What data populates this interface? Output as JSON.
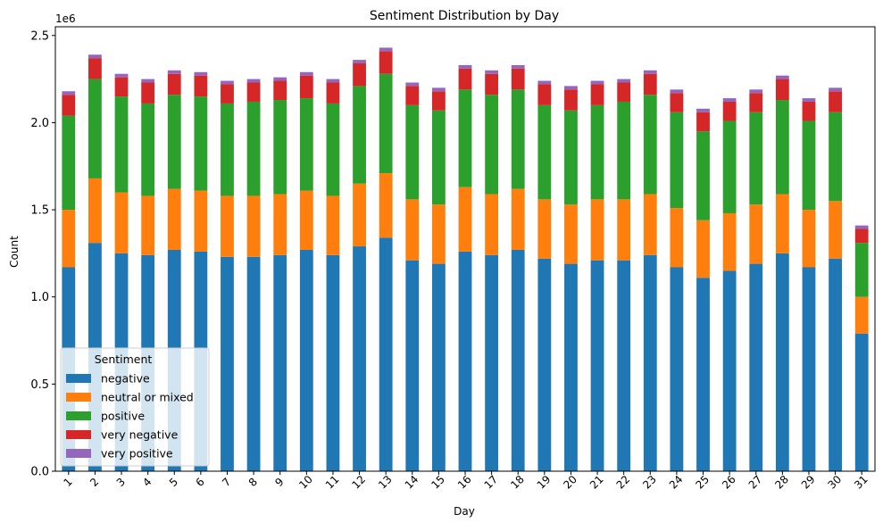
{
  "chart_data": {
    "type": "bar",
    "stacked": true,
    "title": "Sentiment Distribution by Day",
    "xlabel": "Day",
    "ylabel": "Count",
    "y_scale_label": "1e6",
    "ylim": [
      0,
      2.55
    ],
    "y_ticks": [
      0.0,
      0.5,
      1.0,
      1.5,
      2.0,
      2.5
    ],
    "y_tick_labels": [
      "0.0",
      "0.5",
      "1.0",
      "1.5",
      "2.0",
      "2.5"
    ],
    "legend": {
      "title": "Sentiment",
      "placement": "lower-left"
    },
    "categories": [
      "1",
      "2",
      "3",
      "4",
      "5",
      "6",
      "7",
      "8",
      "9",
      "10",
      "11",
      "12",
      "13",
      "14",
      "15",
      "16",
      "17",
      "18",
      "19",
      "20",
      "21",
      "22",
      "23",
      "24",
      "25",
      "26",
      "27",
      "28",
      "29",
      "30",
      "31"
    ],
    "series": [
      {
        "name": "negative",
        "color": "#1f77b4",
        "values": [
          1.17,
          1.31,
          1.25,
          1.24,
          1.27,
          1.26,
          1.23,
          1.23,
          1.24,
          1.27,
          1.24,
          1.29,
          1.34,
          1.21,
          1.19,
          1.26,
          1.24,
          1.27,
          1.22,
          1.19,
          1.21,
          1.21,
          1.24,
          1.17,
          1.11,
          1.15,
          1.19,
          1.25,
          1.17,
          1.22,
          0.79
        ]
      },
      {
        "name": "neutral or mixed",
        "color": "#ff7f0e",
        "values": [
          0.33,
          0.37,
          0.35,
          0.34,
          0.35,
          0.35,
          0.35,
          0.35,
          0.35,
          0.34,
          0.34,
          0.36,
          0.37,
          0.35,
          0.34,
          0.37,
          0.35,
          0.35,
          0.34,
          0.34,
          0.35,
          0.35,
          0.35,
          0.34,
          0.33,
          0.33,
          0.34,
          0.34,
          0.33,
          0.33,
          0.21
        ]
      },
      {
        "name": "positive",
        "color": "#2ca02c",
        "values": [
          0.54,
          0.57,
          0.55,
          0.53,
          0.54,
          0.54,
          0.53,
          0.54,
          0.54,
          0.53,
          0.53,
          0.56,
          0.57,
          0.54,
          0.54,
          0.56,
          0.57,
          0.57,
          0.54,
          0.54,
          0.54,
          0.56,
          0.57,
          0.55,
          0.51,
          0.53,
          0.53,
          0.54,
          0.51,
          0.51,
          0.31
        ]
      },
      {
        "name": "very negative",
        "color": "#d62728",
        "values": [
          0.12,
          0.12,
          0.11,
          0.12,
          0.12,
          0.12,
          0.11,
          0.11,
          0.11,
          0.13,
          0.12,
          0.13,
          0.13,
          0.11,
          0.11,
          0.12,
          0.12,
          0.12,
          0.12,
          0.12,
          0.12,
          0.11,
          0.12,
          0.11,
          0.11,
          0.11,
          0.11,
          0.12,
          0.11,
          0.12,
          0.08
        ]
      },
      {
        "name": "very positive",
        "color": "#9467bd",
        "values": [
          0.02,
          0.02,
          0.02,
          0.02,
          0.02,
          0.02,
          0.02,
          0.02,
          0.02,
          0.02,
          0.02,
          0.02,
          0.02,
          0.02,
          0.02,
          0.02,
          0.02,
          0.02,
          0.02,
          0.02,
          0.02,
          0.02,
          0.02,
          0.02,
          0.02,
          0.02,
          0.02,
          0.02,
          0.02,
          0.02,
          0.02
        ]
      }
    ]
  }
}
